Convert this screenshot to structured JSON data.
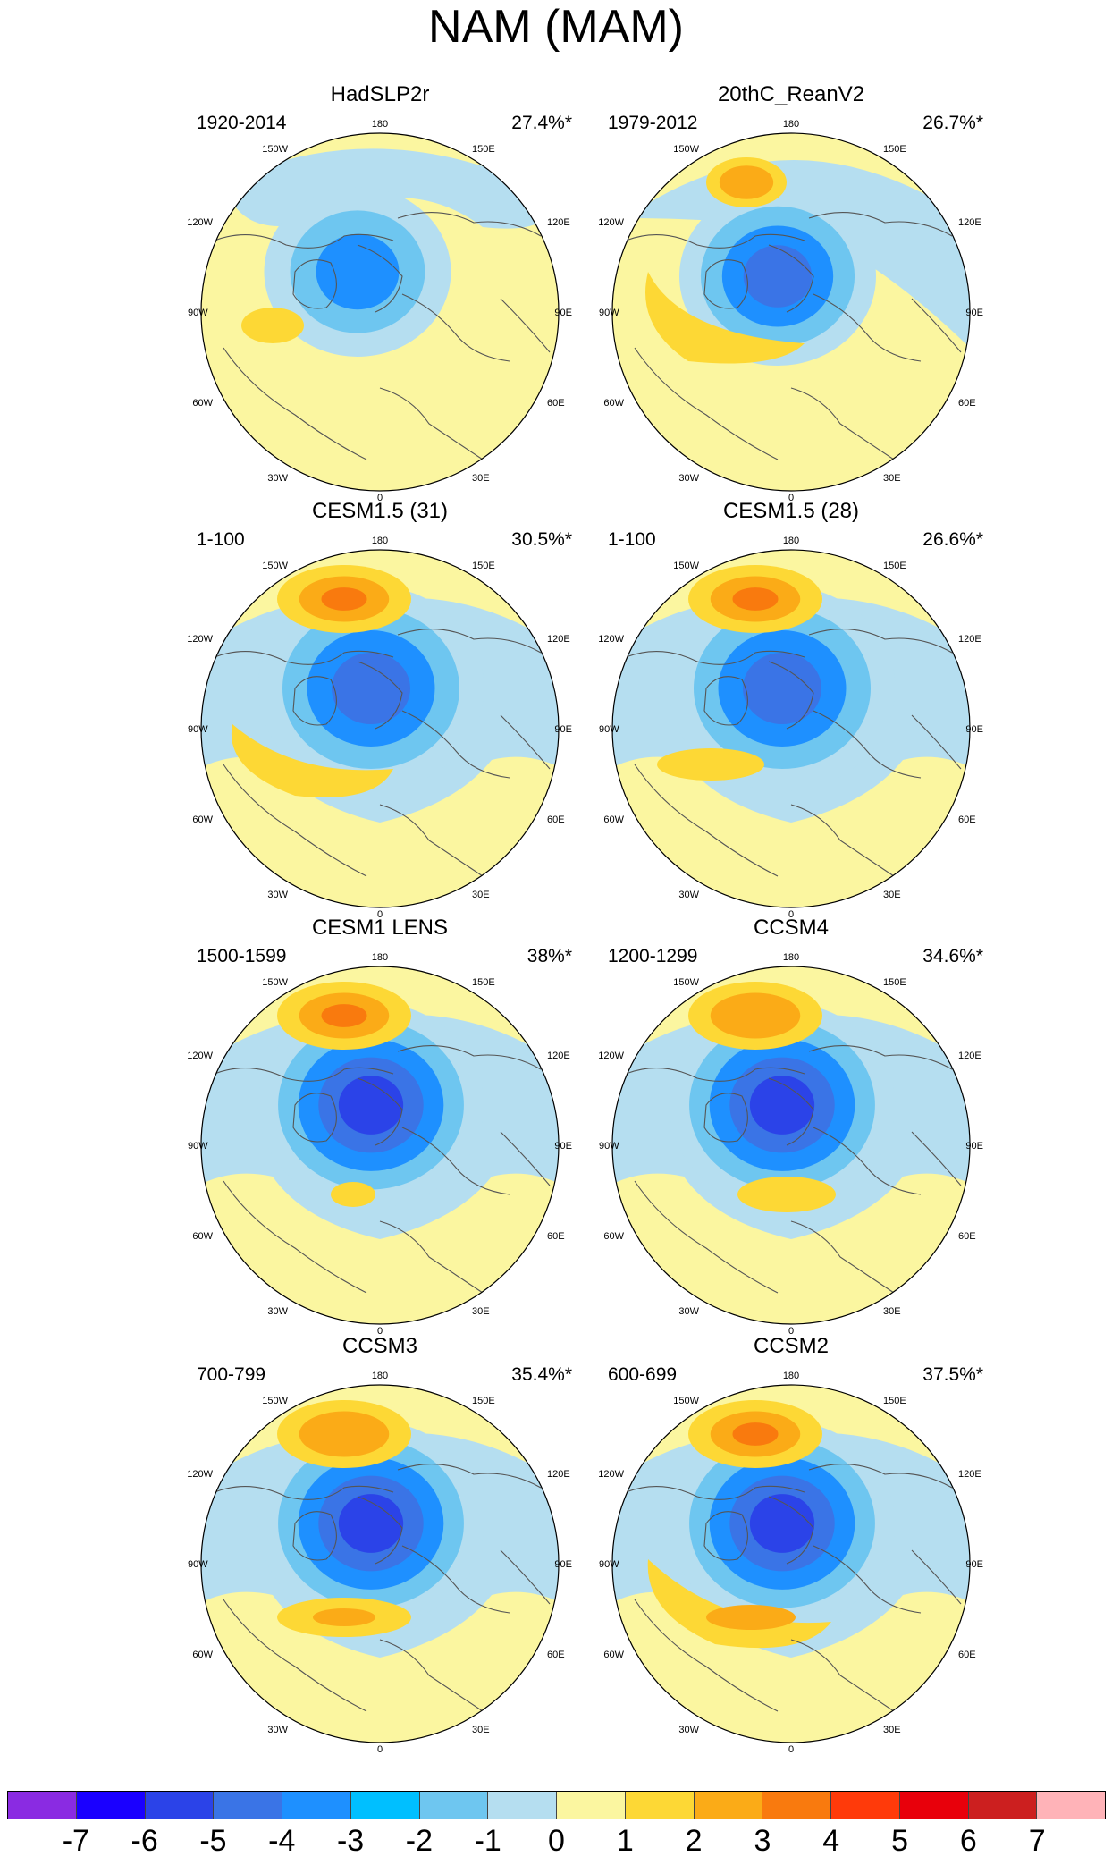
{
  "title": "NAM (MAM)",
  "panels": [
    {
      "title": "HadSLP2r",
      "period": "1920-2014",
      "pct": "27.4%*"
    },
    {
      "title": "20thC_ReanV2",
      "period": "1979-2012",
      "pct": "26.7%*"
    },
    {
      "title": "CESM1.5 (31)",
      "period": "1-100",
      "pct": "30.5%*"
    },
    {
      "title": "CESM1.5 (28)",
      "period": "1-100",
      "pct": "26.6%*"
    },
    {
      "title": "CESM1 LENS",
      "period": "1500-1599",
      "pct": "38%*"
    },
    {
      "title": "CCSM4",
      "period": "1200-1299",
      "pct": "34.6%*"
    },
    {
      "title": "CCSM3",
      "period": "700-799",
      "pct": "35.4%*"
    },
    {
      "title": "CCSM2",
      "period": "600-699",
      "pct": "37.5%*"
    }
  ],
  "longitude_labels": {
    "top": "180",
    "bottom": "0",
    "l1": "150W",
    "l2": "120W",
    "l3": "90W",
    "l4": "60W",
    "l5": "30W",
    "r1": "150E",
    "r2": "120E",
    "r3": "90E",
    "r4": "60E",
    "r5": "30E"
  },
  "colorbar": {
    "colors": [
      "#8a2be2",
      "#1a00ff",
      "#2b43e8",
      "#3a74e6",
      "#1e90ff",
      "#00bfff",
      "#6ec6f0",
      "#b5def0",
      "#fbf6a0",
      "#fdd835",
      "#fbab17",
      "#f97a0e",
      "#ff3a0a",
      "#e8000b",
      "#cc1f1f",
      "#ffb3b8"
    ],
    "ticks": [
      "-7",
      "-6",
      "-5",
      "-4",
      "-3",
      "-2",
      "-1",
      "0",
      "1",
      "2",
      "3",
      "4",
      "5",
      "6",
      "7"
    ]
  },
  "colors": {
    "pos1": "#fbf6a0",
    "pos2": "#fdd835",
    "pos3": "#fbab17",
    "pos4": "#f97a0e",
    "neg1": "#b5def0",
    "neg2": "#6ec6f0",
    "neg3": "#1e90ff",
    "neg4": "#3a74e6",
    "neg5": "#2b43e8",
    "neg6": "#1a00ff",
    "coast": "#555555"
  }
}
